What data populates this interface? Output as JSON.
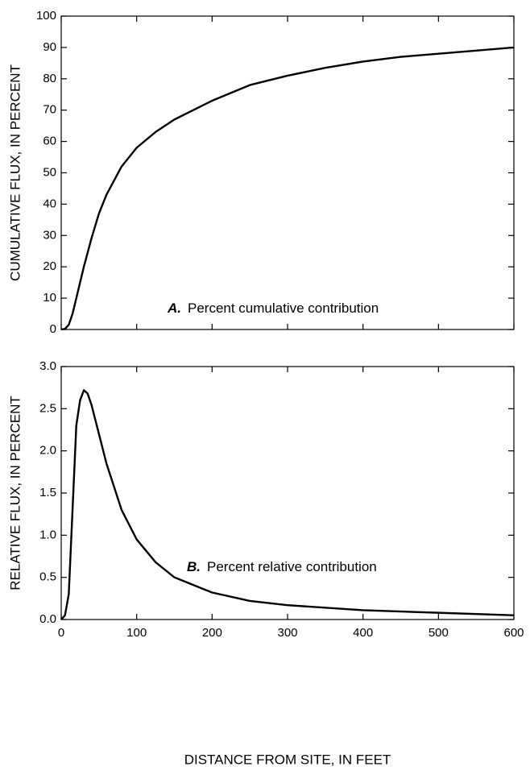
{
  "chart_data": [
    {
      "type": "line",
      "ylabel": "CUMULATIVE FLUX, IN PERCENT",
      "annotation_label": "A.",
      "annotation": "Percent cumulative contribution",
      "x": [
        0,
        5,
        10,
        15,
        20,
        30,
        40,
        50,
        60,
        80,
        100,
        125,
        150,
        200,
        250,
        300,
        350,
        400,
        450,
        500,
        550,
        600
      ],
      "values": [
        0,
        0.2,
        1.5,
        5,
        10,
        20,
        29,
        37,
        43,
        52,
        58,
        63,
        67,
        73,
        78,
        81,
        83.5,
        85.5,
        87,
        88,
        89,
        90
      ],
      "color": "#000000",
      "xlim": [
        0,
        600
      ],
      "xticks": [
        0,
        100,
        200,
        300,
        400,
        500,
        600
      ],
      "show_xtick_labels": false,
      "ylim": [
        0,
        100
      ],
      "yticks": [
        0,
        10,
        20,
        30,
        40,
        50,
        60,
        70,
        80,
        90,
        100
      ]
    },
    {
      "type": "line",
      "ylabel": "RELATIVE FLUX, IN PERCENT",
      "xlabel": "DISTANCE FROM SITE, IN FEET",
      "annotation_label": "B.",
      "annotation": "Percent relative contribution",
      "x": [
        0,
        5,
        10,
        15,
        20,
        25,
        30,
        35,
        40,
        50,
        60,
        80,
        100,
        125,
        150,
        200,
        250,
        300,
        400,
        500,
        600
      ],
      "values": [
        0,
        0.05,
        0.3,
        1.3,
        2.3,
        2.6,
        2.72,
        2.68,
        2.55,
        2.2,
        1.85,
        1.3,
        0.95,
        0.68,
        0.5,
        0.32,
        0.22,
        0.17,
        0.11,
        0.08,
        0.05
      ],
      "color": "#000000",
      "xlim": [
        0,
        600
      ],
      "xticks": [
        0,
        100,
        200,
        300,
        400,
        500,
        600
      ],
      "show_xtick_labels": true,
      "ylim": [
        0,
        3
      ],
      "yticks": [
        {
          "value": 0,
          "label": "0.0"
        },
        0.5,
        {
          "value": 1,
          "label": "1.0"
        },
        1.5,
        {
          "value": 2,
          "label": "2.0"
        },
        2.5,
        {
          "value": 3,
          "label": "3.0"
        }
      ]
    }
  ]
}
